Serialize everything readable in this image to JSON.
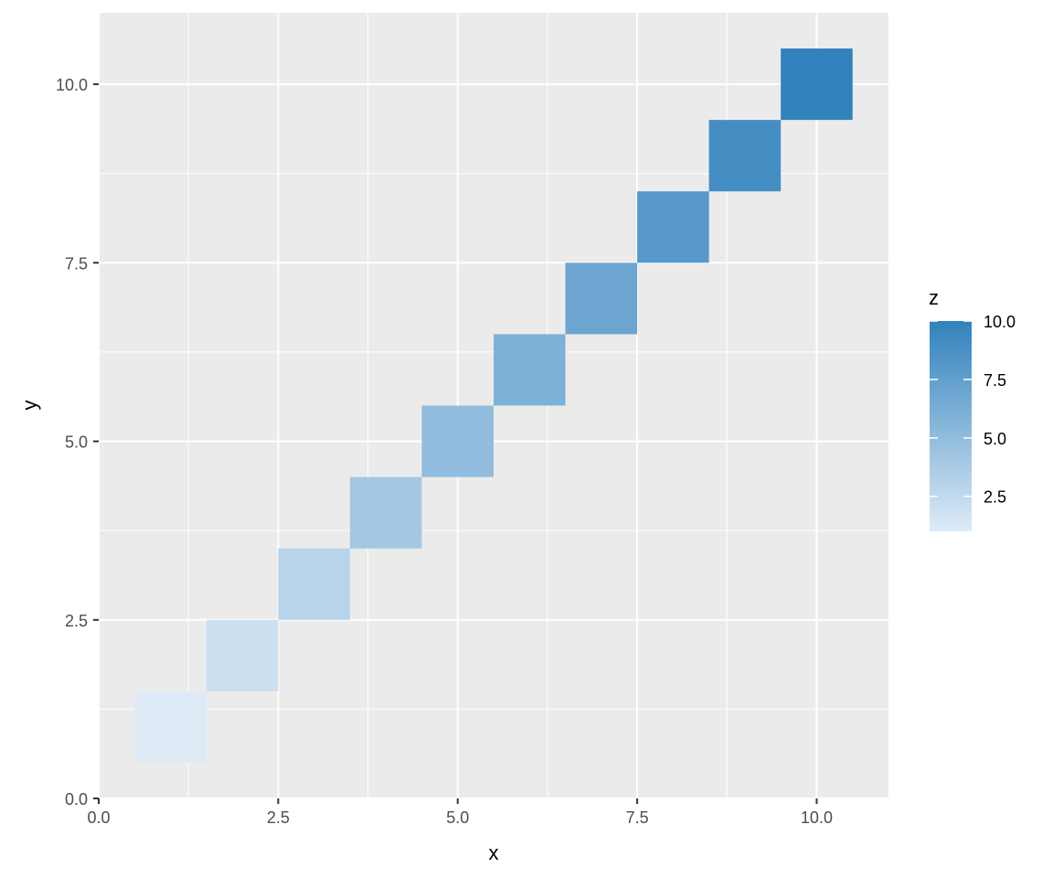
{
  "chart_data": {
    "type": "heatmap",
    "xlabel": "x",
    "ylabel": "y",
    "xlim": [
      0,
      11
    ],
    "ylim": [
      0,
      11
    ],
    "x_ticks": [
      "0.0",
      "2.5",
      "5.0",
      "7.5",
      "10.0"
    ],
    "y_ticks": [
      "0.0",
      "2.5",
      "5.0",
      "7.5",
      "10.0"
    ],
    "x_tick_values": [
      0,
      2.5,
      5,
      7.5,
      10
    ],
    "y_tick_values": [
      0,
      2.5,
      5,
      7.5,
      10
    ],
    "grid": true,
    "tiles": [
      {
        "x": 1,
        "y": 1,
        "z": 1
      },
      {
        "x": 2,
        "y": 2,
        "z": 2
      },
      {
        "x": 3,
        "y": 3,
        "z": 3
      },
      {
        "x": 4,
        "y": 4,
        "z": 4
      },
      {
        "x": 5,
        "y": 5,
        "z": 5
      },
      {
        "x": 6,
        "y": 6,
        "z": 6
      },
      {
        "x": 7,
        "y": 7,
        "z": 7
      },
      {
        "x": 8,
        "y": 8,
        "z": 8
      },
      {
        "x": 9,
        "y": 9,
        "z": 9
      },
      {
        "x": 10,
        "y": 10,
        "z": 10
      }
    ],
    "legend": {
      "title": "z",
      "placement": "right",
      "range": [
        1,
        10
      ],
      "labels": [
        "10.0",
        "7.5",
        "5.0",
        "2.5"
      ],
      "values": [
        10,
        7.5,
        5,
        2.5
      ],
      "low_color": "#deebf7",
      "high_color": "#3182bd"
    },
    "panel_color": "#ebebeb",
    "grid_color": "#ffffff"
  }
}
